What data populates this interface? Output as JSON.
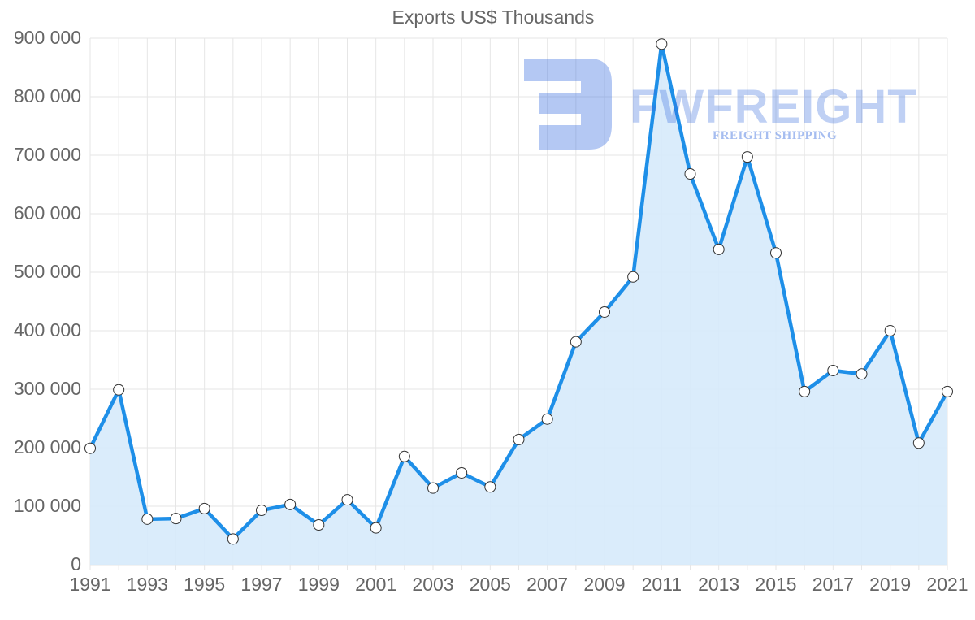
{
  "chart_data": {
    "type": "area",
    "title": "Exports US$ Thousands",
    "xlabel": "",
    "ylabel": "",
    "x": [
      1991,
      1992,
      1993,
      1994,
      1995,
      1996,
      1997,
      1998,
      1999,
      2000,
      2001,
      2002,
      2003,
      2004,
      2005,
      2006,
      2007,
      2008,
      2009,
      2010,
      2011,
      2012,
      2013,
      2014,
      2015,
      2016,
      2017,
      2018,
      2019,
      2020,
      2021
    ],
    "series": [
      {
        "name": "Exports US$ Thousands",
        "values": [
          199000,
          299000,
          78000,
          79000,
          96000,
          44000,
          93000,
          103000,
          68000,
          111000,
          63000,
          185000,
          131000,
          157000,
          133000,
          214000,
          249000,
          381000,
          432000,
          492000,
          890000,
          668000,
          539000,
          697000,
          533000,
          296000,
          332000,
          326000,
          400000,
          208000,
          296000
        ]
      }
    ],
    "ylim": [
      0,
      900000
    ],
    "y_ticks": [
      "0",
      "100 000",
      "200 000",
      "300 000",
      "400 000",
      "500 000",
      "600 000",
      "700 000",
      "800 000",
      "900 000"
    ],
    "x_ticks": [
      "1991",
      "1993",
      "1995",
      "1997",
      "1999",
      "2001",
      "2003",
      "2005",
      "2007",
      "2009",
      "2011",
      "2013",
      "2015",
      "2017",
      "2019",
      "2021"
    ],
    "grid": true,
    "legend": "none",
    "colors": {
      "line": "#1e8fe8",
      "fill": "#d6eafb",
      "grid": "#e6e6e6",
      "marker_fill": "#ffffff",
      "marker_stroke": "#333333"
    }
  },
  "watermark": {
    "brand": "FWFREIGHT",
    "tagline": "FREIGHT SHIPPING"
  }
}
